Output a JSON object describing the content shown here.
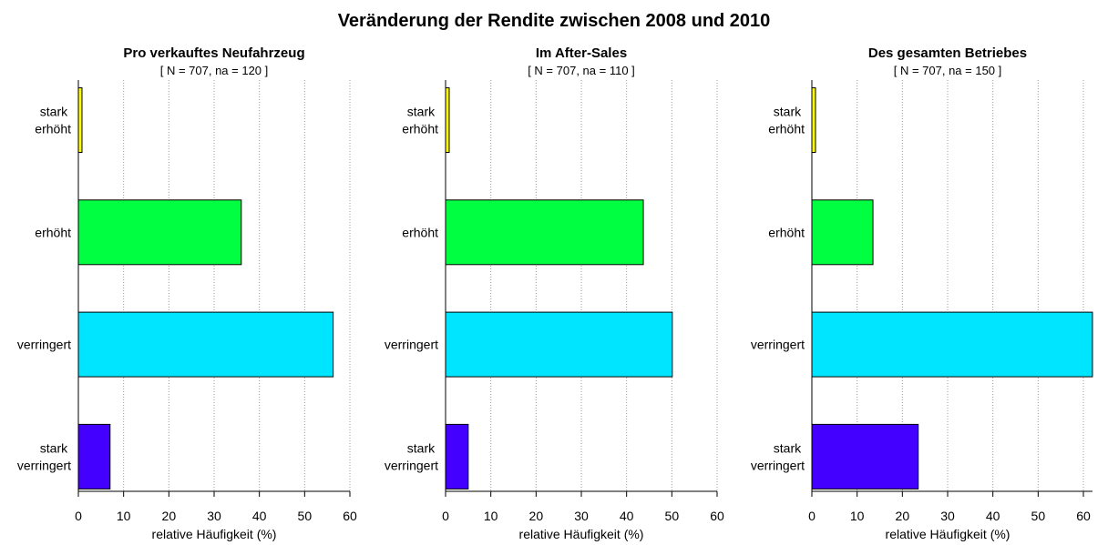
{
  "title": "Veränderung der Rendite zwischen 2008 und 2010",
  "chart_data": [
    {
      "type": "barh",
      "title": "Pro verkauftes Neufahrzeug",
      "subtitle": "[ N = 707, na = 120 ]",
      "categories": [
        "stark erhöht",
        "erhöht",
        "verringert",
        "stark verringert"
      ],
      "values": [
        0.8,
        36,
        56.3,
        7
      ],
      "colors": [
        "#ffff00",
        "#00ff40",
        "#00e5ff",
        "#4400ff"
      ],
      "xlabel": "relative Häufigkeit (%)",
      "xlim": [
        0,
        60
      ],
      "xticks": [
        0,
        10,
        20,
        30,
        40,
        50,
        60
      ],
      "grid": true
    },
    {
      "type": "barh",
      "title": "Im After-Sales",
      "subtitle": "[ N = 707, na = 110 ]",
      "categories": [
        "stark erhöht",
        "erhöht",
        "verringert",
        "stark verringert"
      ],
      "values": [
        0.8,
        43.7,
        50.1,
        5
      ],
      "colors": [
        "#ffff00",
        "#00ff40",
        "#00e5ff",
        "#4400ff"
      ],
      "xlabel": "relative Häufigkeit (%)",
      "xlim": [
        0,
        60
      ],
      "xticks": [
        0,
        10,
        20,
        30,
        40,
        50,
        60
      ],
      "grid": true
    },
    {
      "type": "barh",
      "title": "Des gesamten Betriebes",
      "subtitle": "[ N = 707, na = 150 ]",
      "categories": [
        "stark erhöht",
        "erhöht",
        "verringert",
        "stark verringert"
      ],
      "values": [
        0.8,
        13.5,
        62,
        23.5
      ],
      "colors": [
        "#ffff00",
        "#00ff40",
        "#00e5ff",
        "#4400ff"
      ],
      "xlabel": "relative Häufigkeit (%)",
      "xlim": [
        0,
        62
      ],
      "xticks": [
        0,
        10,
        20,
        30,
        40,
        50,
        60
      ],
      "grid": true
    }
  ]
}
